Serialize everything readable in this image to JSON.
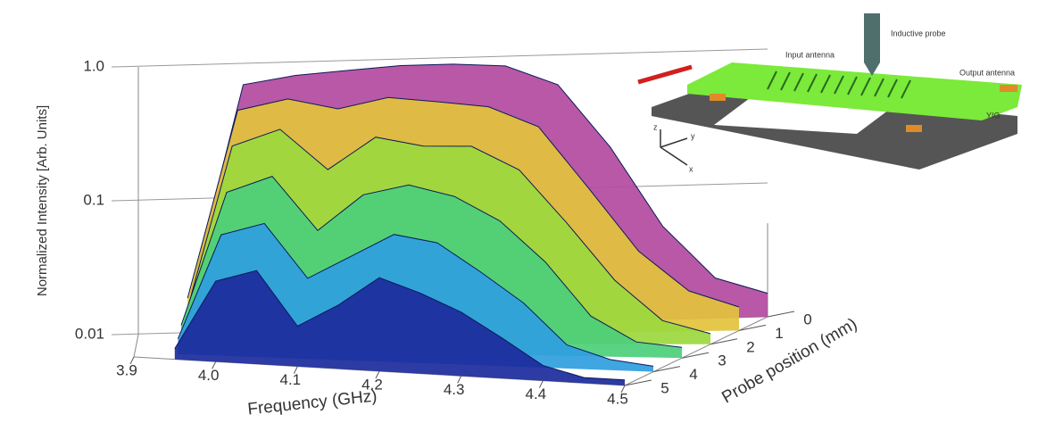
{
  "chart_data": {
    "type": "surface3d",
    "xlabel": "Frequency (GHz)",
    "ylabel": "Probe position (mm)",
    "zlabel": "Normalized Intensity [Arb. Units]",
    "x": [
      3.95,
      4.0,
      4.05,
      4.1,
      4.15,
      4.2,
      4.25,
      4.3,
      4.35,
      4.4,
      4.45,
      4.5
    ],
    "xlim": [
      3.9,
      4.5
    ],
    "xticks": [
      3.9,
      {
        "value": 4,
        "label": "4.0"
      },
      4.1,
      4.2,
      4.3,
      4.4,
      4.5
    ],
    "ylim": [
      0,
      5
    ],
    "yticks": [
      0,
      1,
      2,
      3,
      4,
      5
    ],
    "zlim": [
      0.01,
      1
    ],
    "zticks": [
      0.01,
      0.1,
      {
        "value": 1,
        "label": "1.0"
      }
    ],
    "zscale": "log",
    "series": [
      {
        "y": 0,
        "color": "#b24aa0",
        "values": [
          0.02,
          0.7,
          0.8,
          0.85,
          0.9,
          0.9,
          0.85,
          0.6,
          0.2,
          0.05,
          0.02,
          0.015
        ]
      },
      {
        "y": 1,
        "color": "#e2c23c",
        "values": [
          0.02,
          0.5,
          0.6,
          0.5,
          0.6,
          0.55,
          0.5,
          0.35,
          0.12,
          0.04,
          0.02,
          0.015
        ]
      },
      {
        "y": 2,
        "color": "#9cd83e",
        "values": [
          0.015,
          0.3,
          0.4,
          0.2,
          0.35,
          0.3,
          0.3,
          0.2,
          0.08,
          0.03,
          0.015,
          0.012
        ]
      },
      {
        "y": 3,
        "color": "#4ccf7a",
        "values": [
          0.015,
          0.15,
          0.2,
          0.08,
          0.15,
          0.18,
          0.15,
          0.1,
          0.05,
          0.02,
          0.013,
          0.012
        ]
      },
      {
        "y": 4,
        "color": "#2f9ee0",
        "values": [
          0.013,
          0.08,
          0.1,
          0.04,
          0.06,
          0.09,
          0.08,
          0.05,
          0.03,
          0.015,
          0.012,
          0.011
        ]
      },
      {
        "y": 5,
        "color": "#1b2a9c",
        "values": [
          0.012,
          0.04,
          0.05,
          0.02,
          0.03,
          0.05,
          0.04,
          0.03,
          0.02,
          0.013,
          0.011,
          0.011
        ]
      }
    ],
    "annotations": [
      "Inductive probe",
      "Input antenna",
      "Output antenna",
      "YIG",
      "x",
      "y",
      "z"
    ]
  }
}
